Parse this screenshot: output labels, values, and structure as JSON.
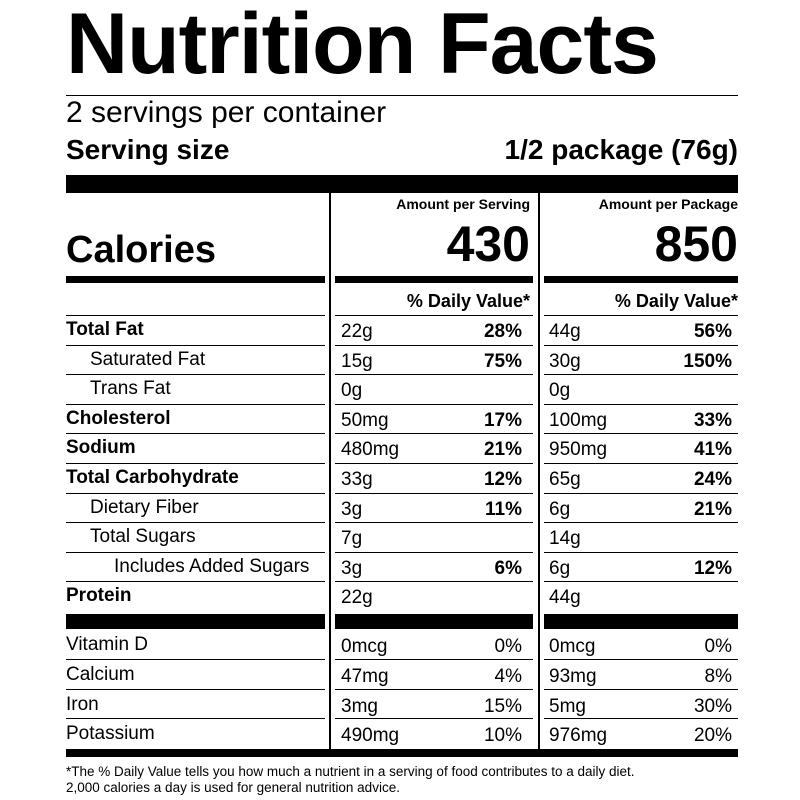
{
  "title": "Nutrition Facts",
  "servings_per_container": "2 servings per container",
  "serving_size": {
    "label": "Serving size",
    "value": "1/2 package (76g)"
  },
  "calories": {
    "label": "Calories",
    "per_serving_header": "Amount per Serving",
    "per_package_header": "Amount per Package",
    "per_serving": "430",
    "per_package": "850"
  },
  "daily_value_header": "% Daily Value*",
  "nutrients": [
    {
      "name": "Total Fat",
      "bold": true,
      "indent": 0,
      "serving_amount": "22g",
      "serving_dv": "28%",
      "package_amount": "44g",
      "package_dv": "56%"
    },
    {
      "name": "Saturated Fat",
      "bold": false,
      "indent": 1,
      "serving_amount": "15g",
      "serving_dv": "75%",
      "package_amount": "30g",
      "package_dv": "150%"
    },
    {
      "name": "Trans Fat",
      "bold": false,
      "indent": 1,
      "serving_amount": "0g",
      "serving_dv": "",
      "package_amount": "0g",
      "package_dv": ""
    },
    {
      "name": "Cholesterol",
      "bold": true,
      "indent": 0,
      "serving_amount": "50mg",
      "serving_dv": "17%",
      "package_amount": "100mg",
      "package_dv": "33%"
    },
    {
      "name": "Sodium",
      "bold": true,
      "indent": 0,
      "serving_amount": "480mg",
      "serving_dv": "21%",
      "package_amount": "950mg",
      "package_dv": "41%"
    },
    {
      "name": "Total Carbohydrate",
      "bold": true,
      "indent": 0,
      "serving_amount": "33g",
      "serving_dv": "12%",
      "package_amount": "65g",
      "package_dv": "24%"
    },
    {
      "name": "Dietary Fiber",
      "bold": false,
      "indent": 1,
      "serving_amount": "3g",
      "serving_dv": "11%",
      "package_amount": "6g",
      "package_dv": "21%"
    },
    {
      "name": "Total Sugars",
      "bold": false,
      "indent": 1,
      "serving_amount": "7g",
      "serving_dv": "",
      "package_amount": "14g",
      "package_dv": ""
    },
    {
      "name": "Includes Added Sugars",
      "bold": false,
      "indent": 2,
      "serving_amount": "3g",
      "serving_dv": "6%",
      "package_amount": "6g",
      "package_dv": "12%"
    },
    {
      "name": "Protein",
      "bold": true,
      "indent": 0,
      "serving_amount": "22g",
      "serving_dv": "",
      "package_amount": "44g",
      "package_dv": ""
    }
  ],
  "vitamins": [
    {
      "name": "Vitamin D",
      "serving_amount": "0mcg",
      "serving_dv": "0%",
      "package_amount": "0mcg",
      "package_dv": "0%"
    },
    {
      "name": "Calcium",
      "serving_amount": "47mg",
      "serving_dv": "4%",
      "package_amount": "93mg",
      "package_dv": "8%"
    },
    {
      "name": "Iron",
      "serving_amount": "3mg",
      "serving_dv": "15%",
      "package_amount": "5mg",
      "package_dv": "30%"
    },
    {
      "name": "Potassium",
      "serving_amount": "490mg",
      "serving_dv": "10%",
      "package_amount": "976mg",
      "package_dv": "20%"
    }
  ],
  "footnote": [
    "*The % Daily Value tells you how much a nutrient in a serving of food contributes to a daily diet.",
    "2,000 calories a day is used for general nutrition advice."
  ]
}
